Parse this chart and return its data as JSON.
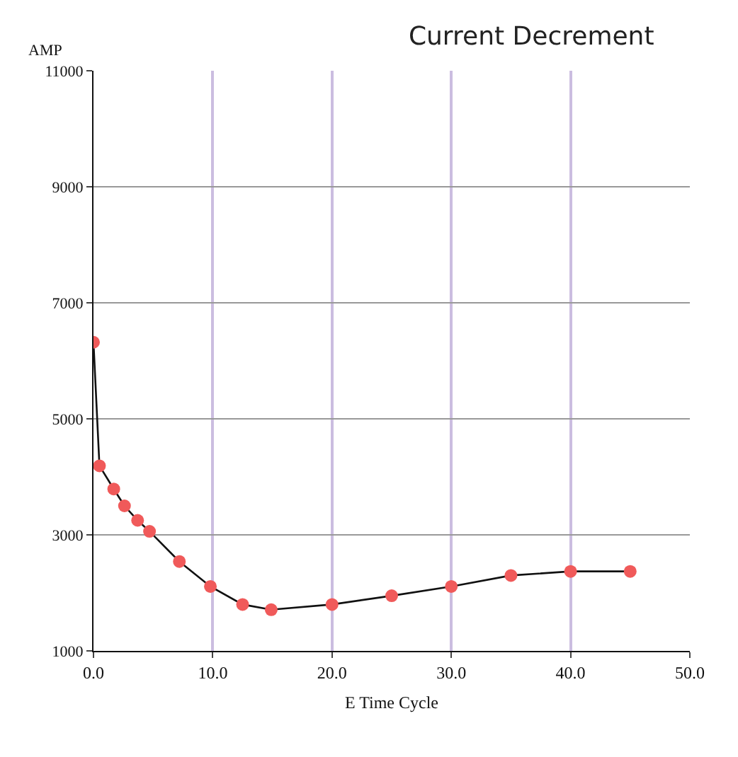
{
  "chart_data": {
    "type": "line",
    "title": "Current Decrement",
    "xlabel": "E Time Cycle",
    "ylabel": "AMP",
    "x": [
      0,
      0.5,
      1.7,
      2.6,
      3.7,
      4.7,
      7.2,
      9.8,
      12.5,
      14.9,
      20,
      25,
      30,
      35,
      40,
      45
    ],
    "series": [
      {
        "color": "#f05a5a",
        "values": [
          6320,
          4190,
          3790,
          3500,
          3250,
          3060,
          2540,
          2110,
          1800,
          1710,
          1800,
          1950,
          2110,
          2300,
          2370,
          2370
        ]
      }
    ],
    "xlim": [
      0,
      50
    ],
    "xticks": [
      {
        "value": 0,
        "label": "0.0"
      },
      {
        "value": 10,
        "label": "10.0"
      },
      {
        "value": 20,
        "label": "20.0"
      },
      {
        "value": 30,
        "label": "30.0"
      },
      {
        "value": 40,
        "label": "40.0"
      },
      {
        "value": 50,
        "label": "50.0"
      }
    ],
    "ylim": [
      1000,
      11000
    ],
    "yticks": [
      1000,
      3000,
      5000,
      7000,
      9000,
      11000
    ],
    "grid": true,
    "marker": "circle",
    "line_style": "solid"
  }
}
